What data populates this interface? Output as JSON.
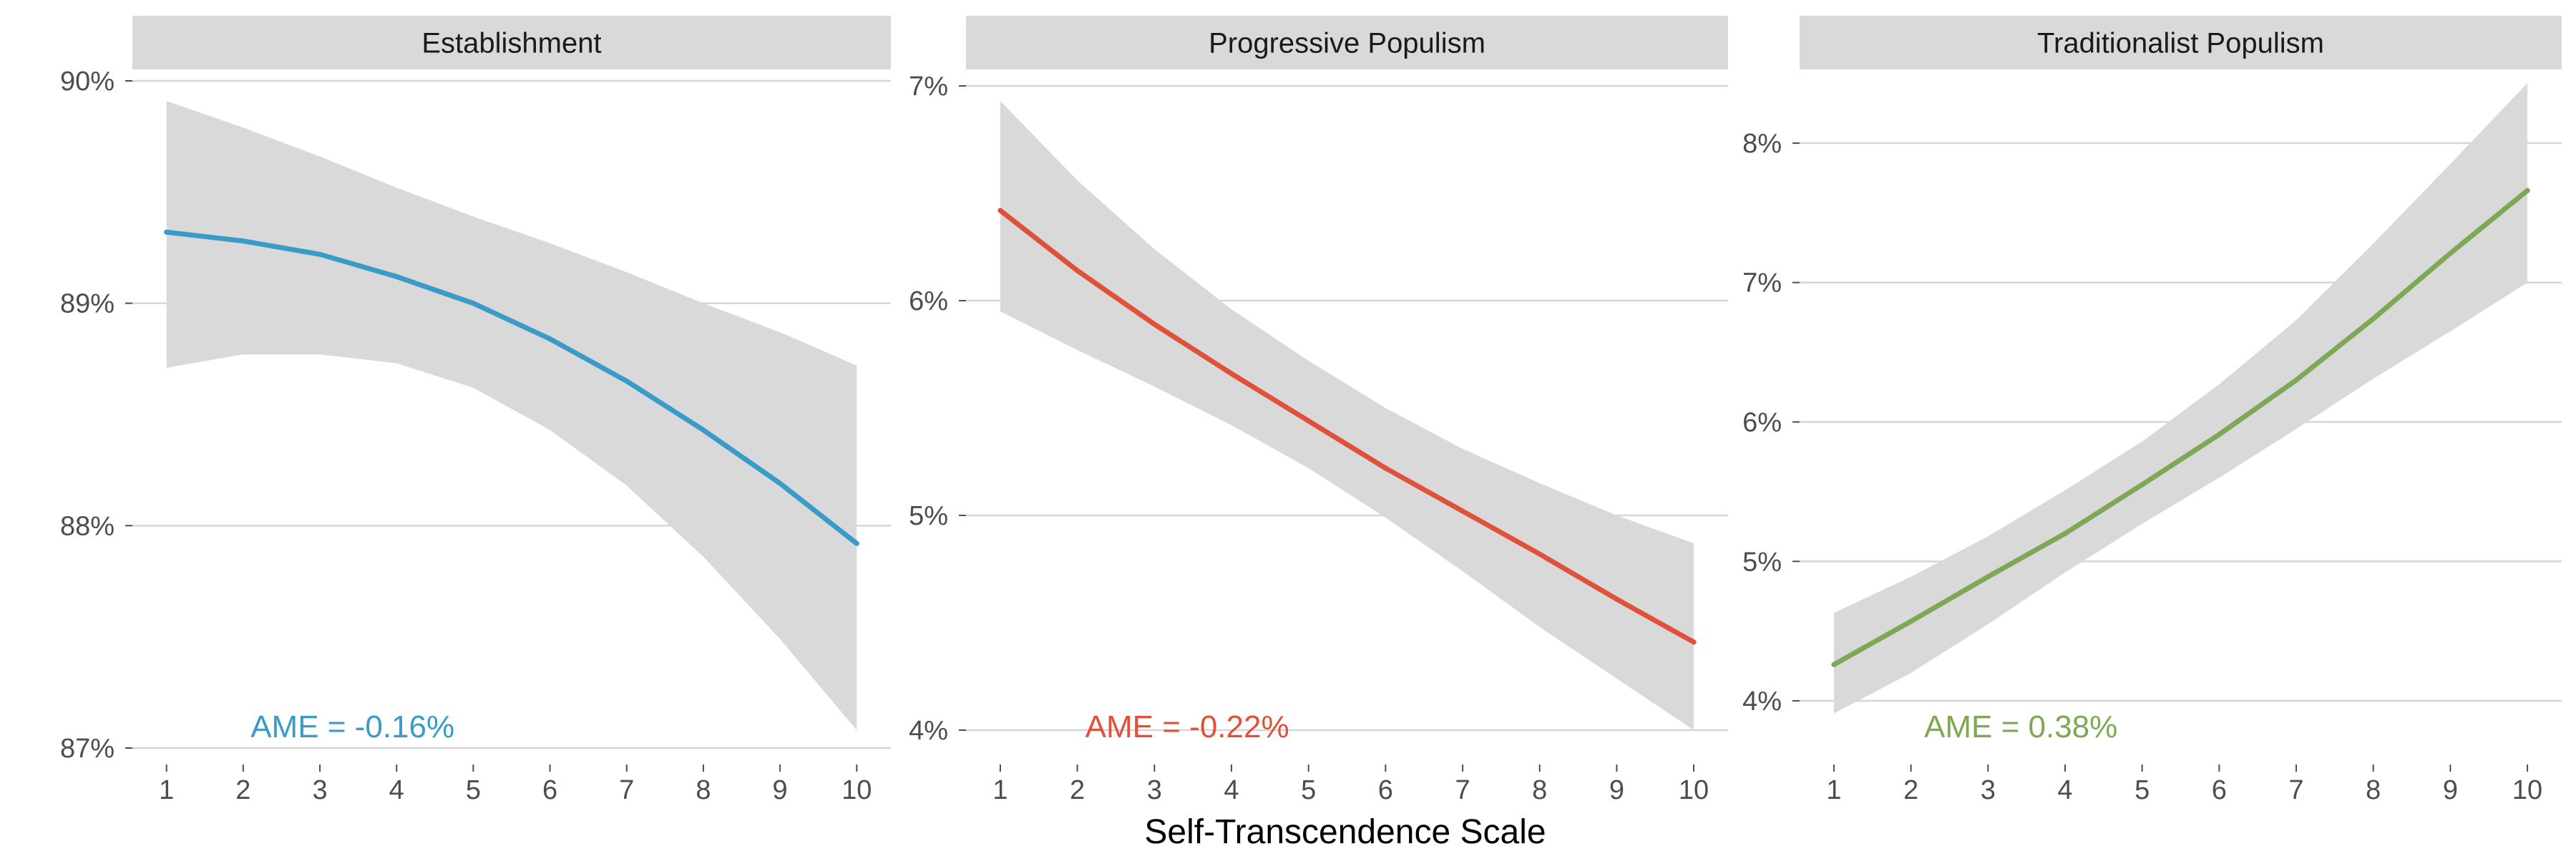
{
  "chart_data": {
    "type": "line",
    "xlabel": "Self-Transcendence Scale",
    "x": [
      1,
      2,
      3,
      4,
      5,
      6,
      7,
      8,
      9,
      10
    ],
    "x_ticks": [
      "1",
      "2",
      "3",
      "4",
      "5",
      "6",
      "7",
      "8",
      "9",
      "10"
    ],
    "grid": "horizontal major only",
    "ribbon_color": "#d9d9d9",
    "strip_color": "#d9d9d9",
    "panels": [
      {
        "title": "Establishment",
        "color": "#3b9bc8",
        "ylim": [
          87,
          90
        ],
        "y_ticks": [
          87,
          88,
          89,
          90
        ],
        "y_tick_labels": [
          "87%",
          "88%",
          "89%",
          "90%"
        ],
        "series": [
          {
            "values": [
              89.32,
              89.28,
              89.22,
              89.12,
              89.0,
              88.84,
              88.65,
              88.43,
              88.19,
              87.92
            ],
            "lower": [
              88.71,
              88.77,
              88.77,
              88.73,
              88.62,
              88.43,
              88.18,
              87.86,
              87.49,
              87.08
            ],
            "upper": [
              89.91,
              89.79,
              89.66,
              89.52,
              89.39,
              89.27,
              89.14,
              89.0,
              88.87,
              88.72
            ]
          }
        ],
        "annotation": "AME = -0.16%"
      },
      {
        "title": "Progressive Populism",
        "color": "#e0513b",
        "ylim": [
          4,
          7
        ],
        "y_ticks": [
          4,
          5,
          6,
          7
        ],
        "y_tick_labels": [
          "4%",
          "5%",
          "6%",
          "7%"
        ],
        "series": [
          {
            "values": [
              6.42,
              6.14,
              5.89,
              5.66,
              5.44,
              5.22,
              5.02,
              4.82,
              4.61,
              4.41
            ],
            "lower": [
              5.95,
              5.77,
              5.6,
              5.42,
              5.22,
              4.99,
              4.74,
              4.48,
              4.24,
              4.0
            ],
            "upper": [
              6.93,
              6.56,
              6.24,
              5.96,
              5.72,
              5.5,
              5.31,
              5.15,
              5.0,
              4.87
            ]
          }
        ],
        "annotation": "AME = -0.22%"
      },
      {
        "title": "Traditionalist Populism",
        "color": "#7fa856",
        "ylim": [
          3.8,
          8.4
        ],
        "y_ticks": [
          4,
          5,
          6,
          7,
          8
        ],
        "y_tick_labels": [
          "4%",
          "5%",
          "6%",
          "7%",
          "8%"
        ],
        "series": [
          {
            "values": [
              4.26,
              4.57,
              4.89,
              5.2,
              5.55,
              5.91,
              6.3,
              6.74,
              7.21,
              7.66
            ],
            "lower": [
              3.91,
              4.2,
              4.55,
              4.92,
              5.27,
              5.6,
              5.95,
              6.31,
              6.65,
              7.0
            ],
            "upper": [
              4.63,
              4.89,
              5.18,
              5.51,
              5.86,
              6.27,
              6.73,
              7.28,
              7.85,
              8.43
            ]
          }
        ],
        "annotation": "AME = 0.38%"
      }
    ]
  }
}
